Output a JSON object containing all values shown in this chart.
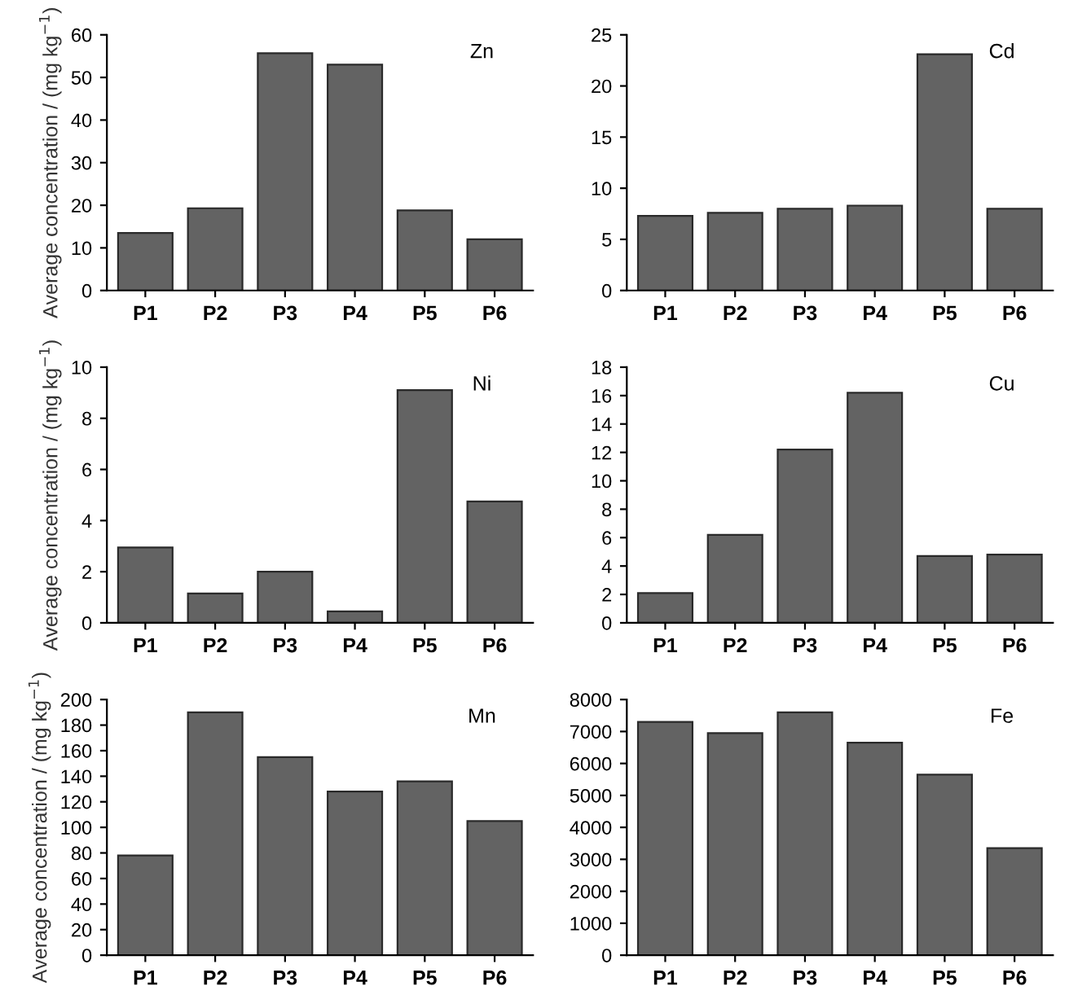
{
  "chart_data": [
    {
      "type": "bar",
      "ylabel": "Average concentration / (mg kg$^{−1}$)",
      "annotations": [
        "Zn"
      ],
      "categories": [
        "P1",
        "P2",
        "P3",
        "P4",
        "P5",
        "P6"
      ],
      "values": [
        13.5,
        19.3,
        55.7,
        53,
        18.8,
        12
      ],
      "color": "#636363",
      "ylim": [
        0,
        60
      ],
      "yticks": [
        0,
        10,
        20,
        30,
        40,
        50,
        60
      ],
      "grid": false,
      "legend": false
    },
    {
      "type": "bar",
      "annotations": [
        "Cd"
      ],
      "categories": [
        "P1",
        "P2",
        "P3",
        "P4",
        "P5",
        "P6"
      ],
      "values": [
        7.3,
        7.6,
        8.0,
        8.3,
        23.1,
        8.0
      ],
      "color": "#636363",
      "ylim": [
        0,
        25
      ],
      "yticks": [
        0,
        5,
        10,
        15,
        20,
        25
      ],
      "grid": false,
      "legend": false
    },
    {
      "type": "bar",
      "ylabel": "Average concentration / (mg kg$^{−1}$)",
      "annotations": [
        "Ni"
      ],
      "categories": [
        "P1",
        "P2",
        "P3",
        "P4",
        "P5",
        "P6"
      ],
      "values": [
        2.95,
        1.15,
        2.0,
        0.45,
        9.1,
        4.75
      ],
      "color": "#636363",
      "ylim": [
        0,
        10
      ],
      "yticks": [
        0,
        2,
        4,
        6,
        8,
        10
      ],
      "grid": false,
      "legend": false
    },
    {
      "type": "bar",
      "annotations": [
        "Cu"
      ],
      "categories": [
        "P1",
        "P2",
        "P3",
        "P4",
        "P5",
        "P6"
      ],
      "values": [
        2.1,
        6.2,
        12.2,
        16.2,
        4.7,
        4.8
      ],
      "color": "#636363",
      "ylim": [
        0,
        18
      ],
      "yticks": [
        0,
        2,
        4,
        6,
        8,
        10,
        12,
        14,
        16,
        18
      ],
      "grid": false,
      "legend": false
    },
    {
      "type": "bar",
      "ylabel": "Average concentration / (mg kg$^{−1}$)",
      "annotations": [
        "Mn"
      ],
      "categories": [
        "P1",
        "P2",
        "P3",
        "P4",
        "P5",
        "P6"
      ],
      "values": [
        78,
        190,
        155,
        128,
        136,
        105
      ],
      "color": "#636363",
      "ylim": [
        0,
        200
      ],
      "yticks": [
        0,
        20,
        40,
        60,
        80,
        100,
        120,
        140,
        160,
        180,
        200
      ],
      "grid": false,
      "legend": false
    },
    {
      "type": "bar",
      "annotations": [
        "Fe"
      ],
      "categories": [
        "P1",
        "P2",
        "P3",
        "P4",
        "P5",
        "P6"
      ],
      "values": [
        7300,
        6950,
        7600,
        6650,
        5650,
        3350
      ],
      "color": "#636363",
      "ylim": [
        0,
        8000
      ],
      "yticks": [
        0,
        1000,
        2000,
        3000,
        4000,
        5000,
        6000,
        7000,
        8000
      ],
      "grid": false,
      "legend": false
    }
  ]
}
